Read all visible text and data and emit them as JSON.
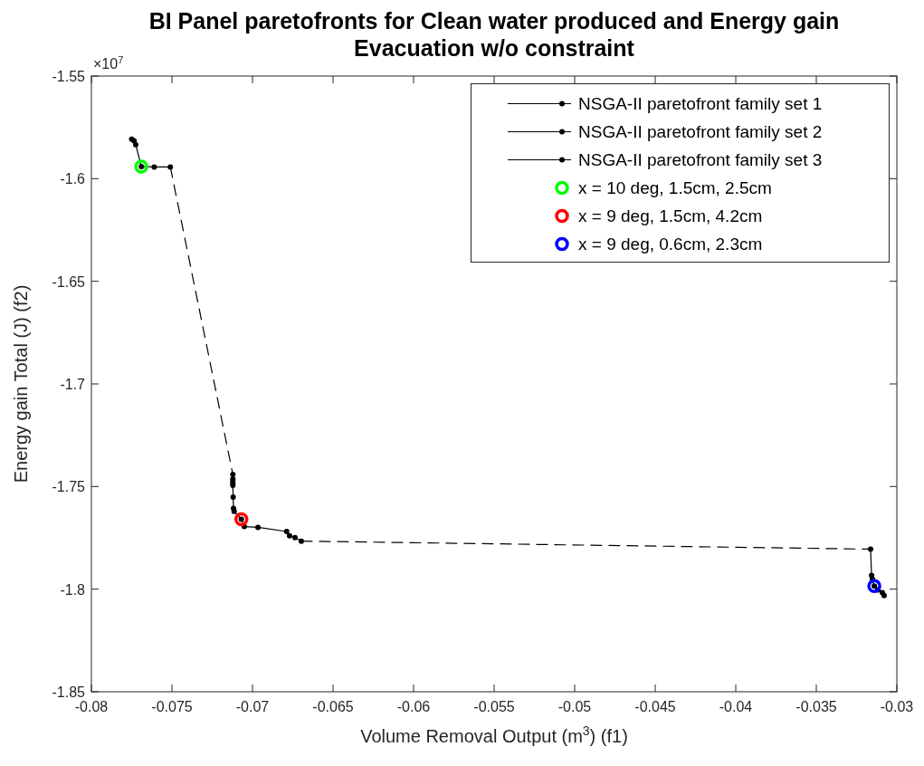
{
  "chart_data": {
    "type": "line",
    "title": "BI Panel paretofronts for Clean water produced and Energy gain\nEvacuation w/o constraint",
    "xlabel": "Volume Removal Output (m$^{3}$) (f1)",
    "ylabel": "Energy gain Total (J) (f2)",
    "annotations": [
      "×10$^{7}$"
    ],
    "xlim": [
      -0.08,
      -0.03
    ],
    "ylim": [
      -1.85,
      -1.55
    ],
    "xticks": [
      -0.08,
      -0.075,
      -0.07,
      -0.065,
      -0.06,
      -0.055,
      -0.05,
      -0.045,
      -0.04,
      -0.035,
      -0.03
    ],
    "yticks": [
      -1.85,
      -1.8,
      -1.75,
      -1.7,
      -1.65,
      -1.6,
      -1.55
    ],
    "grid": false,
    "legend": "top right",
    "series": [
      {
        "name": "NSGA-II paretofront family set 1",
        "type": "line",
        "color": "#000000",
        "marker": "circle",
        "line_style": "solid",
        "x": [
          -0.0775,
          -0.07735,
          -0.07725,
          -0.0769,
          -0.0761,
          -0.0751
        ],
        "values": [
          -1.5808,
          -1.5815,
          -1.5834,
          -1.5941,
          -1.5943,
          -1.5943
        ]
      },
      {
        "name": "NSGA-II paretofront family set 2",
        "type": "line",
        "color": "#000000",
        "marker": "circle",
        "line_style": "solid",
        "x": [
          -0.07122,
          -0.07122,
          -0.07122,
          -0.07122,
          -0.07122,
          -0.0712,
          -0.07118,
          -0.07114,
          -0.07069,
          -0.07051,
          -0.06966,
          -0.06788,
          -0.0677,
          -0.06736,
          -0.06697
        ],
        "values": [
          -1.7441,
          -1.7464,
          -1.7475,
          -1.7485,
          -1.7494,
          -1.7552,
          -1.7607,
          -1.7621,
          -1.766,
          -1.7695,
          -1.7699,
          -1.7719,
          -1.774,
          -1.7749,
          -1.7766
        ]
      },
      {
        "name": "NSGA-II paretofront family set 3",
        "type": "line",
        "color": "#000000",
        "marker": "circle",
        "line_style": "solid",
        "x": [
          -0.03163,
          -0.03157,
          -0.03152,
          -0.0314,
          -0.03118,
          -0.0309,
          -0.03079
        ],
        "values": [
          -1.7805,
          -1.7933,
          -1.7951,
          -1.7985,
          -1.8004,
          -1.8017,
          -1.8031
        ]
      },
      {
        "type": "line",
        "color": "#000000",
        "marker": "none",
        "line_style": "dashed",
        "x": [
          -0.0751,
          -0.07122
        ],
        "values": [
          -1.5943,
          -1.7441
        ]
      },
      {
        "type": "line",
        "color": "#000000",
        "marker": "none",
        "line_style": "dashed",
        "x": [
          -0.06697,
          -0.03163
        ],
        "values": [
          -1.7766,
          -1.7805
        ]
      },
      {
        "name": "x = 10 deg, 1.5cm, 2.5cm",
        "type": "scatter",
        "color": "#00ff00",
        "marker": "circle",
        "x": [
          -0.0769
        ],
        "values": [
          -1.5941
        ]
      },
      {
        "name": "x = 9 deg, 1.5cm, 4.2cm",
        "type": "scatter",
        "color": "#ff0000",
        "marker": "circle",
        "x": [
          -0.07069
        ],
        "values": [
          -1.766
        ]
      },
      {
        "name": "x = 9 deg, 0.6cm, 2.3cm",
        "type": "scatter",
        "color": "#0000ff",
        "marker": "circle",
        "x": [
          -0.0314
        ],
        "values": [
          -1.7985
        ]
      }
    ]
  }
}
